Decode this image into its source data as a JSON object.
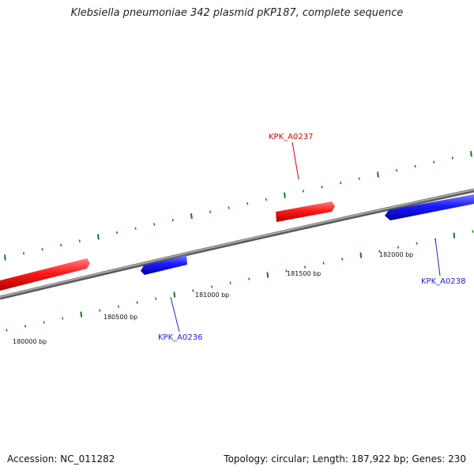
{
  "title": "Klebsiella pneumoniae 342 plasmid pKP187, complete sequence",
  "footer": {
    "accession": "Accession: NC_011282",
    "summary": "Topology: circular; Length: 187,922 bp; Genes: 230"
  },
  "colors": {
    "forward_strand": "#ff2020",
    "reverse_strand": "#2020e8",
    "backbone": "#808080",
    "ticks": "#1a7a1a"
  },
  "scale_labels": [
    "180000 bp",
    "180500 bp",
    "181000 bp",
    "181500 bp",
    "182000 bp"
  ],
  "genes": [
    {
      "name": "KPK_A0236",
      "strand": "reverse"
    },
    {
      "name": "KPK_A0237",
      "strand": "forward"
    },
    {
      "name": "KPK_A0238",
      "strand": "reverse"
    }
  ]
}
